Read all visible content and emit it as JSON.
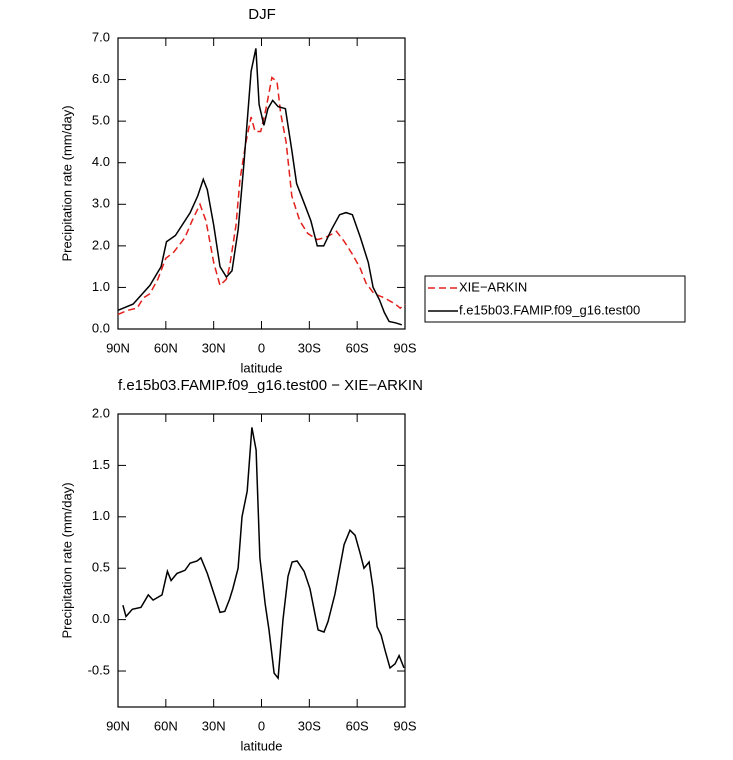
{
  "chart_data": [
    {
      "type": "line",
      "title": "DJF",
      "xlabel": "latitude",
      "ylabel": "Precipitation rate (mm/day)",
      "xlim": [
        90,
        -90
      ],
      "xticks": [
        {
          "value": 90,
          "label": "90N"
        },
        {
          "value": 60,
          "label": "60N"
        },
        {
          "value": 30,
          "label": "30N"
        },
        0,
        {
          "value": -30,
          "label": "30S"
        },
        {
          "value": -60,
          "label": "60S"
        },
        {
          "value": -90,
          "label": "90S"
        }
      ],
      "ylim": [
        0,
        7
      ],
      "yticks": [
        {
          "value": 0,
          "label": "0.0"
        },
        {
          "value": 1,
          "label": "1.0"
        },
        {
          "value": 2,
          "label": "2.0"
        },
        {
          "value": 3,
          "label": "3.0"
        },
        {
          "value": 4,
          "label": "4.0"
        },
        {
          "value": 5,
          "label": "5.0"
        },
        {
          "value": 6,
          "label": "6.0"
        },
        {
          "value": 7,
          "label": "7.0"
        }
      ],
      "legend": "right",
      "series": [
        {
          "name": "XIE−ARKIN",
          "color": "#e3201b",
          "line_style": "dashed",
          "x": [
            90,
            84,
            78,
            74,
            70,
            65,
            60,
            55,
            48,
            43.6,
            38.6,
            34.8,
            30,
            26,
            22,
            20,
            16,
            13.5,
            9.7,
            6.5,
            4,
            0.5,
            -2.8,
            -6.5,
            -9.7,
            -12,
            -15.4,
            -19,
            -24,
            -29,
            -35,
            -40,
            -45,
            -47,
            -52,
            -57,
            -62,
            -65.6,
            -70.6,
            -77,
            -84,
            -87,
            -90
          ],
          "values": [
            0.35,
            0.45,
            0.5,
            0.75,
            0.85,
            1.2,
            1.7,
            1.85,
            2.2,
            2.6,
            3.0,
            2.6,
            1.6,
            1.05,
            1.2,
            1.5,
            2.5,
            3.6,
            4.5,
            5.1,
            4.75,
            4.75,
            5.3,
            6.05,
            5.95,
            5.2,
            4.5,
            3.2,
            2.6,
            2.3,
            2.15,
            2.2,
            2.3,
            2.35,
            2.1,
            1.8,
            1.45,
            1.1,
            0.85,
            0.75,
            0.6,
            0.5,
            0.6
          ]
        },
        {
          "name": "f.e15b03.FAMIP.f09_g16.test00",
          "color": "#000000",
          "line_style": "solid",
          "x": [
            90,
            80.5,
            70,
            63,
            59.6,
            54,
            44.7,
            40,
            36.5,
            34,
            30,
            26,
            22,
            18.5,
            14.6,
            11,
            6.5,
            3.5,
            1.5,
            -1.5,
            -4,
            -7,
            -10.4,
            -15,
            -19,
            -22,
            -27,
            -31,
            -35,
            -39,
            -44,
            -49,
            -53,
            -57,
            -62,
            -67,
            -70,
            -74,
            -77,
            -80,
            -84,
            -88
          ],
          "values": [
            0.45,
            0.6,
            1.05,
            1.5,
            2.1,
            2.25,
            2.8,
            3.2,
            3.6,
            3.35,
            2.5,
            1.5,
            1.25,
            1.4,
            2.4,
            4.0,
            6.2,
            6.75,
            5.4,
            4.9,
            5.3,
            5.5,
            5.35,
            5.3,
            4.3,
            3.5,
            3.0,
            2.6,
            2.0,
            2.0,
            2.4,
            2.75,
            2.8,
            2.75,
            2.2,
            1.6,
            1.0,
            0.7,
            0.4,
            0.18,
            0.15,
            0.1
          ]
        }
      ]
    },
    {
      "type": "line",
      "title": "f.e15b03.FAMIP.f09_g16.test00 − XIE−ARKIN",
      "xlabel": "latitude",
      "ylabel": "Precipitation rate (mm/day)",
      "xlim": [
        90,
        -90
      ],
      "xticks": [
        {
          "value": 90,
          "label": "90N"
        },
        {
          "value": 60,
          "label": "60N"
        },
        {
          "value": 30,
          "label": "30N"
        },
        0,
        {
          "value": -30,
          "label": "30S"
        },
        {
          "value": -60,
          "label": "60S"
        },
        {
          "value": -90,
          "label": "90S"
        }
      ],
      "ylim": [
        -0.85,
        2.0
      ],
      "yticks": [
        -0.5,
        {
          "value": 0,
          "label": "0.0"
        },
        0.5,
        {
          "value": 1,
          "label": "1.0"
        },
        1.5,
        {
          "value": 2,
          "label": "2.0"
        }
      ],
      "series": [
        {
          "color": "#000000",
          "line_style": "solid",
          "x": [
            86.9,
            85,
            81,
            75.6,
            71,
            68,
            62.4,
            59,
            56.7,
            53,
            48,
            44.8,
            40.4,
            38,
            34,
            29.8,
            26,
            23,
            20,
            18,
            14.7,
            12.2,
            9,
            6,
            3.4,
            1,
            -2.3,
            -4.7,
            -7.9,
            -10.4,
            -13.5,
            -16.6,
            -19.2,
            -22.3,
            -26.7,
            -30.4,
            -35.5,
            -39.2,
            -41.7,
            -46.1,
            -51.8,
            -55.5,
            -58.7,
            -61.8,
            -64.3,
            -67.5,
            -70,
            -72.5,
            -75,
            -77.5,
            -80.6,
            -83.8,
            -86.3,
            -89.4
          ],
          "values": [
            0.14,
            0.03,
            0.1,
            0.12,
            0.24,
            0.19,
            0.24,
            0.47,
            0.38,
            0.45,
            0.48,
            0.55,
            0.57,
            0.6,
            0.45,
            0.25,
            0.07,
            0.08,
            0.2,
            0.3,
            0.5,
            1.0,
            1.25,
            1.87,
            1.65,
            0.6,
            0.15,
            -0.1,
            -0.52,
            -0.57,
            0.0,
            0.42,
            0.56,
            0.57,
            0.47,
            0.3,
            -0.1,
            -0.12,
            -0.02,
            0.25,
            0.73,
            0.87,
            0.82,
            0.65,
            0.5,
            0.56,
            0.3,
            -0.07,
            -0.15,
            -0.3,
            -0.47,
            -0.43,
            -0.35,
            -0.47
          ]
        }
      ]
    }
  ]
}
